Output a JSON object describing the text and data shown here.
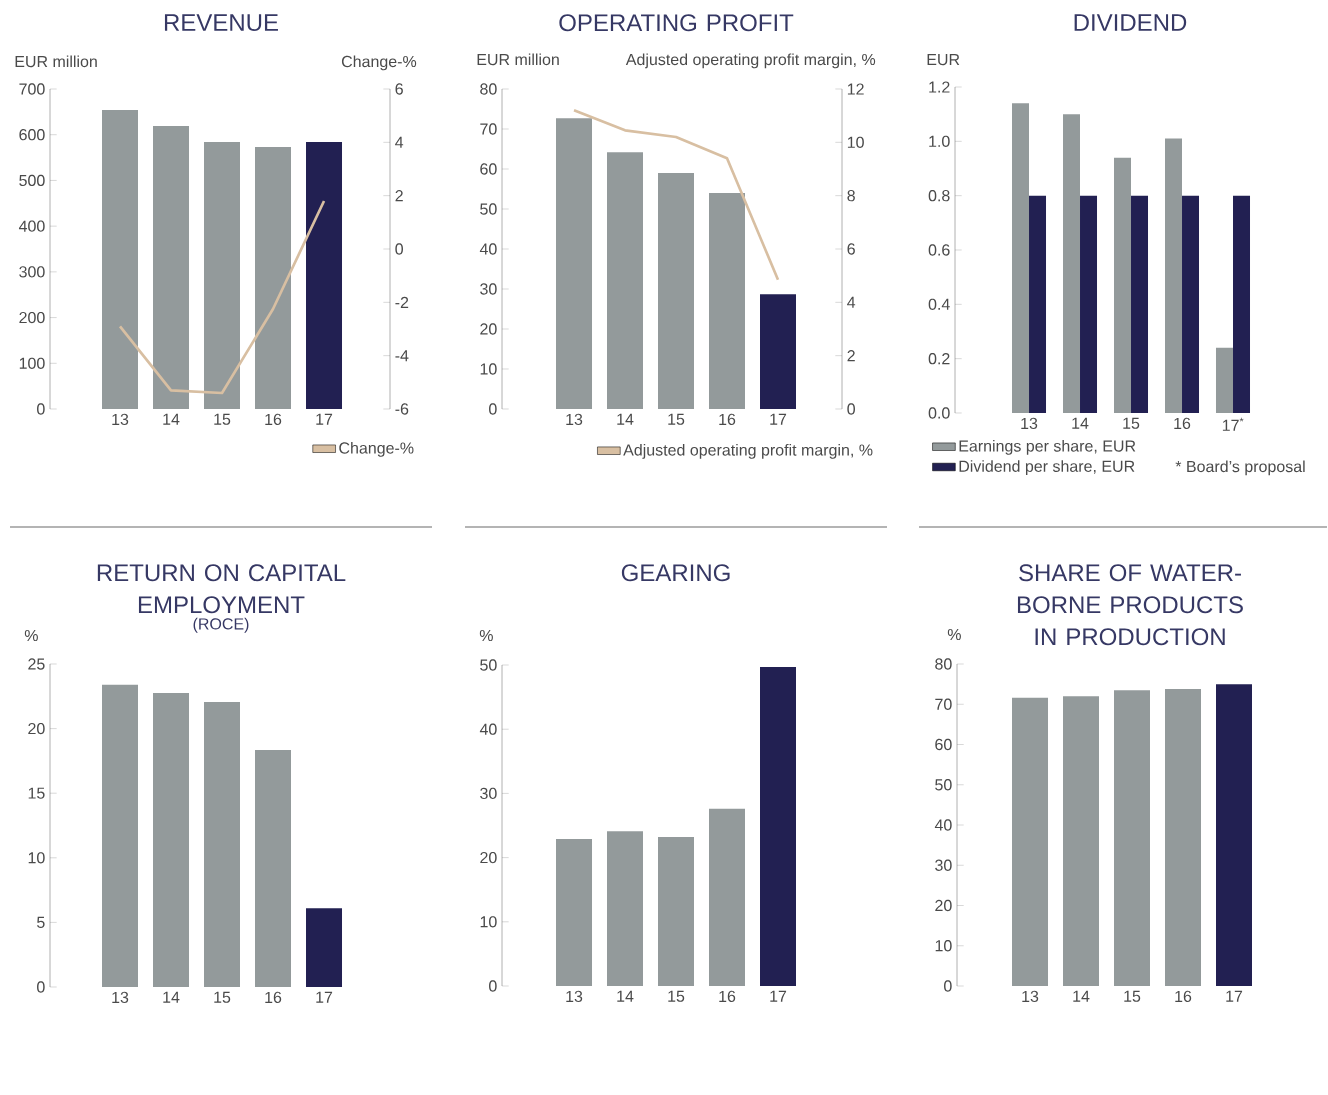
{
  "chart_data": [
    {
      "type": "bar",
      "title": "REVENUE",
      "ylabel": "EUR million",
      "y2label": "Change-%",
      "categories": [
        "13",
        "14",
        "15",
        "16",
        "17"
      ],
      "series": [
        {
          "type": "bar",
          "colors": [
            "#939a9b",
            "#939a9b",
            "#939a9b",
            "#939a9b",
            "#222052"
          ],
          "values": [
            654,
            619,
            584,
            573,
            584
          ]
        },
        {
          "type": "line",
          "name": "Change-%",
          "color": "#d8bfa2",
          "axis": "y2",
          "values": [
            -2.9,
            -5.3,
            -5.4,
            -2.25,
            1.8
          ]
        }
      ],
      "ylim": [
        0,
        700
      ],
      "yticks": [
        0,
        100,
        200,
        300,
        400,
        500,
        600,
        700
      ],
      "y2lim": [
        -6,
        6
      ],
      "y2ticks": [
        -6,
        -4,
        -2,
        0,
        2,
        4,
        6
      ],
      "legend": "bottom right"
    },
    {
      "type": "bar",
      "title": "OPERATING PROFIT",
      "ylabel": "EUR million",
      "y2label": "Adjusted operating profit margin, %",
      "categories": [
        "13",
        "14",
        "15",
        "16",
        "17"
      ],
      "series": [
        {
          "type": "bar",
          "colors": [
            "#939a9b",
            "#939a9b",
            "#939a9b",
            "#939a9b",
            "#222052"
          ],
          "values": [
            72.7,
            64.2,
            59,
            54,
            28.7
          ]
        },
        {
          "type": "line",
          "name": "Adjusted operating profit margin, %",
          "color": "#d8bfa2",
          "axis": "y2",
          "values": [
            11.2,
            10.45,
            10.2,
            9.4,
            4.85
          ]
        }
      ],
      "ylim": [
        0,
        80
      ],
      "yticks": [
        0,
        10,
        20,
        30,
        40,
        50,
        60,
        70,
        80
      ],
      "y2lim": [
        0,
        12
      ],
      "y2ticks": [
        0,
        2,
        4,
        6,
        8,
        10,
        12
      ],
      "legend": "bottom right"
    },
    {
      "type": "bar",
      "title": "DIVIDEND",
      "ylabel": "EUR",
      "categories": [
        "13",
        "14",
        "15",
        "16",
        "17$^{*}$"
      ],
      "series": [
        {
          "type": "bar",
          "name": "Earnings per share, EUR",
          "color": "#939a9b",
          "values": [
            1.14,
            1.1,
            0.94,
            1.01,
            0.24
          ]
        },
        {
          "type": "bar",
          "name": "Dividend per share, EUR",
          "color": "#222052",
          "values": [
            0.8,
            0.8,
            0.8,
            0.8,
            0.8
          ]
        }
      ],
      "ylim": [
        0,
        1.2
      ],
      "yticks": [
        {
          "value": 0,
          "label": "0.0"
        },
        0.2,
        0.4,
        0.6,
        0.8,
        {
          "value": 1,
          "label": "1.0"
        },
        1.2
      ],
      "legend": "bottom left",
      "annotations": [
        "* Board’s proposal"
      ]
    },
    {
      "type": "bar",
      "title": "RETURN ON CAPITAL EMPLOYMENT",
      "subtitle": "(ROCE)",
      "ylabel": "%",
      "categories": [
        "13",
        "14",
        "15",
        "16",
        "17"
      ],
      "values": [
        23.4,
        22.75,
        22.05,
        18.35,
        6.1
      ],
      "colors": [
        "#939a9b",
        "#939a9b",
        "#939a9b",
        "#939a9b",
        "#222052"
      ],
      "ylim": [
        0,
        25
      ],
      "yticks": [
        0,
        5,
        10,
        15,
        20,
        25
      ]
    },
    {
      "type": "bar",
      "title": "GEARING",
      "ylabel": "%",
      "categories": [
        "13",
        "14",
        "15",
        "16",
        "17"
      ],
      "values": [
        22.9,
        24.1,
        23.2,
        27.6,
        49.7
      ],
      "colors": [
        "#939a9b",
        "#939a9b",
        "#939a9b",
        "#939a9b",
        "#222052"
      ],
      "ylim": [
        0,
        50
      ],
      "yticks": [
        0,
        10,
        20,
        30,
        40,
        50
      ]
    },
    {
      "type": "bar",
      "title": "SHARE OF WATER-BORNE PRODUCTS IN PRODUCTION",
      "ylabel": "%",
      "categories": [
        "13",
        "14",
        "15",
        "16",
        "17"
      ],
      "values": [
        71.6,
        72,
        73.5,
        73.8,
        75
      ],
      "colors": [
        "#939a9b",
        "#939a9b",
        "#939a9b",
        "#939a9b",
        "#222052"
      ],
      "ylim": [
        0,
        80
      ],
      "yticks": [
        0,
        10,
        20,
        30,
        40,
        50,
        60,
        70,
        80
      ]
    }
  ]
}
